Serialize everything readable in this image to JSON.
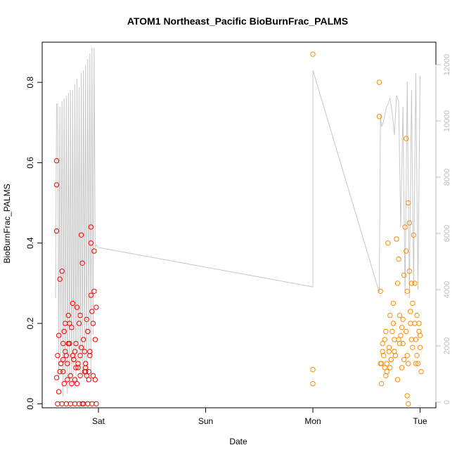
{
  "chart_data": {
    "type": "scatter",
    "title": "ATOM1 Northeast_Pacific BioBurnFrac_PALMS",
    "xlabel": "Date",
    "ylabel": "BioBurnFrac_PALMS",
    "x_ticks": [
      "Sat",
      "Sun",
      "Mon",
      "Tue"
    ],
    "ylim": [
      -0.01,
      0.9
    ],
    "y_ticks": [
      "0.0",
      "0.2",
      "0.4",
      "0.6",
      "0.8"
    ],
    "y2_ticks": [
      "0",
      "2000",
      "4000",
      "6000",
      "8000",
      "10000",
      "12000"
    ],
    "y2lim": [
      -200,
      12800
    ],
    "grid": false,
    "colors": {
      "series1": "#ff0000",
      "series2": "#ff8c00",
      "altitude": "#c8c8c8"
    },
    "series": [
      {
        "axis": "left",
        "x": [
          -0.39,
          -0.38,
          -0.37,
          -0.36,
          -0.35,
          -0.34,
          -0.33,
          -0.32,
          -0.31,
          -0.3,
          -0.29,
          -0.28,
          -0.27,
          -0.26,
          -0.25,
          -0.24,
          -0.23,
          -0.22,
          -0.21,
          -0.2,
          -0.19,
          -0.18,
          -0.17,
          -0.16,
          -0.15,
          -0.14,
          -0.13,
          -0.12,
          -0.11,
          -0.1,
          -0.09,
          -0.08,
          -0.07,
          -0.06,
          -0.05,
          -0.04,
          -0.03,
          -0.02,
          -0.37,
          -0.35,
          -0.33,
          -0.31,
          -0.29,
          -0.27,
          -0.25,
          -0.23,
          -0.21,
          -0.19,
          -0.17,
          -0.15,
          -0.13,
          -0.11,
          -0.09,
          -0.07,
          -0.05,
          -0.03,
          -0.38,
          -0.34,
          -0.3,
          -0.26,
          -0.22,
          -0.18,
          -0.14,
          -0.1,
          -0.06,
          -0.02,
          -0.39,
          -0.39,
          -0.39,
          -0.36,
          -0.33,
          -0.28,
          -0.24,
          -0.2,
          -0.16,
          -0.12,
          -0.08,
          -0.04,
          -0.32,
          -0.27,
          -0.22,
          -0.17,
          -0.12,
          -0.07
        ],
        "y": [
          0.065,
          0.12,
          0.17,
          0.08,
          0.1,
          0.33,
          0.15,
          0.05,
          0.2,
          0.12,
          0.1,
          0.22,
          0.15,
          0.07,
          0.19,
          0.25,
          0.11,
          0.13,
          0.15,
          0.24,
          0.09,
          0.2,
          0.12,
          0.42,
          0.35,
          0.16,
          0.13,
          0.1,
          0.21,
          0.18,
          0.08,
          0.12,
          0.27,
          0.23,
          0.07,
          0.28,
          0.06,
          0.24,
          0.03,
          0.1,
          0.08,
          0.13,
          0.06,
          0.15,
          0.05,
          0.11,
          0.09,
          0.1,
          0.07,
          0.0,
          0.08,
          0.07,
          0.06,
          0.4,
          0.2,
          0.16,
          0.0,
          0.0,
          0.0,
          0.0,
          0.0,
          0.0,
          0.0,
          0.0,
          0.0,
          0.0,
          0.605,
          0.545,
          0.43,
          0.31,
          0.11,
          0.15,
          0.12,
          0.05,
          0.14,
          0.09,
          0.13,
          0.38,
          0.18,
          0.2,
          0.06,
          0.22,
          0.08,
          0.44
        ]
      },
      {
        "axis": "left",
        "x": [
          2.0,
          2.0,
          2.0,
          2.62,
          2.62,
          2.63,
          2.64,
          2.65,
          2.66,
          2.67,
          2.68,
          2.69,
          2.7,
          2.71,
          2.72,
          2.73,
          2.74,
          2.75,
          2.76,
          2.77,
          2.78,
          2.79,
          2.8,
          2.81,
          2.82,
          2.83,
          2.84,
          2.85,
          2.86,
          2.87,
          2.88,
          2.89,
          2.9,
          2.91,
          2.92,
          2.93,
          2.94,
          2.95,
          2.96,
          2.97,
          2.98,
          2.99,
          3.0,
          3.01,
          2.63,
          2.65,
          2.67,
          2.69,
          2.71,
          2.73,
          2.75,
          2.77,
          2.79,
          2.81,
          2.83,
          2.85,
          2.87,
          2.89,
          2.91,
          2.93,
          2.95,
          2.97,
          2.99,
          2.64,
          2.68,
          2.72,
          2.76,
          2.8,
          2.84,
          2.88,
          2.92,
          2.96,
          3.0,
          2.87,
          2.88,
          2.89,
          2.9
        ],
        "y": [
          0.87,
          0.085,
          0.05,
          0.8,
          0.715,
          0.28,
          0.1,
          0.15,
          0.12,
          0.09,
          0.18,
          0.1,
          0.4,
          0.13,
          0.22,
          0.11,
          0.18,
          0.25,
          0.16,
          0.12,
          0.41,
          0.3,
          0.36,
          0.22,
          0.17,
          0.19,
          0.15,
          0.32,
          0.44,
          0.38,
          0.28,
          0.5,
          0.33,
          0.2,
          0.16,
          0.25,
          0.42,
          0.3,
          0.16,
          0.22,
          0.1,
          0.2,
          0.14,
          0.08,
          0.1,
          0.13,
          0.16,
          0.08,
          0.14,
          0.11,
          0.2,
          0.12,
          0.06,
          0.15,
          0.09,
          0.11,
          0.18,
          0.1,
          0.23,
          0.14,
          0.2,
          0.12,
          0.18,
          0.05,
          0.07,
          0.09,
          0.13,
          0.16,
          0.21,
          0.12,
          0.3,
          0.1,
          0.17,
          0.66,
          0.02,
          0.0,
          0.45
        ]
      },
      {
        "axis": "right",
        "type": "line",
        "x": [
          -0.4,
          -0.39,
          -0.38,
          -0.37,
          -0.36,
          -0.35,
          -0.34,
          -0.33,
          -0.32,
          -0.31,
          -0.3,
          -0.29,
          -0.28,
          -0.27,
          -0.26,
          -0.25,
          -0.24,
          -0.23,
          -0.22,
          -0.21,
          -0.2,
          -0.19,
          -0.18,
          -0.17,
          -0.16,
          -0.15,
          -0.14,
          -0.13,
          -0.12,
          -0.11,
          -0.1,
          -0.09,
          -0.08,
          -0.07,
          -0.06,
          -0.05,
          -0.04,
          -0.03,
          -0.02,
          0.0,
          2.0,
          2.0,
          2.62,
          2.63,
          2.64,
          2.66,
          2.68,
          2.7,
          2.72,
          2.74,
          2.76,
          2.78,
          2.8,
          2.82,
          2.84,
          2.86,
          2.88,
          2.9,
          2.92,
          2.94,
          2.96,
          2.98,
          3.0
        ],
        "y": [
          3700,
          10600,
          10600,
          800,
          10500,
          1700,
          10700,
          200,
          10800,
          900,
          10900,
          300,
          11000,
          700,
          11100,
          500,
          11100,
          1000,
          11300,
          600,
          11500,
          1300,
          11200,
          800,
          11700,
          1000,
          11800,
          1400,
          12000,
          700,
          12200,
          1900,
          12400,
          1100,
          12600,
          2400,
          12600,
          5500,
          5600,
          5500,
          4100,
          11800,
          3900,
          10200,
          9800,
          10000,
          10400,
          10600,
          10800,
          10300,
          9500,
          10900,
          10700,
          6200,
          10500,
          3800,
          11400,
          3700,
          11100,
          4200,
          11700,
          4000,
          11600
        ]
      }
    ]
  }
}
